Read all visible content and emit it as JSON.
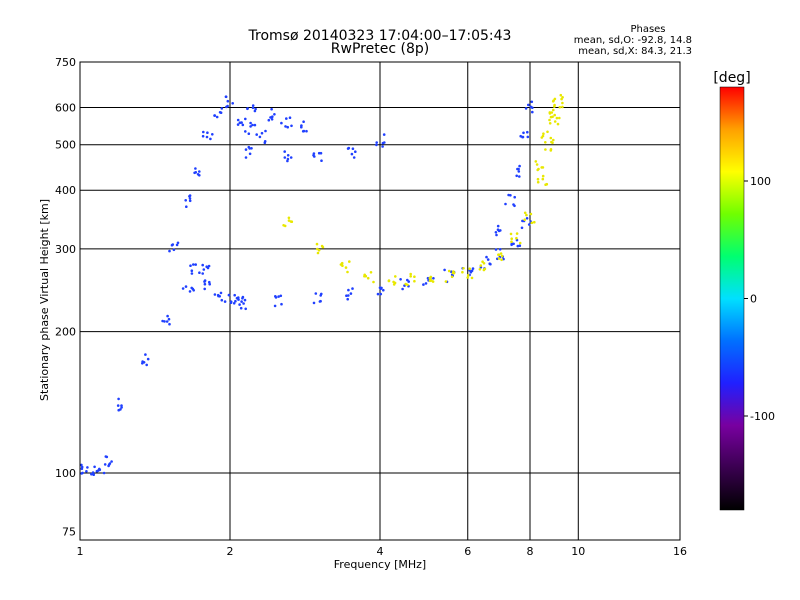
{
  "chart_data": {
    "type": "scatter",
    "title": "Tromsø 20140323 17:04:00–17:05:43",
    "subtitle": "RwPretec (8p)",
    "xlabel": "Frequency [MHz]",
    "ylabel": "Stationary phase Virtual Height [km]",
    "xscale": "log",
    "yscale": "log",
    "xlim": [
      1,
      16
    ],
    "ylim": [
      72,
      750
    ],
    "x_ticks": [
      1,
      2,
      4,
      6,
      8,
      10,
      16
    ],
    "y_ticks": [
      75,
      100,
      200,
      300,
      400,
      500,
      600,
      750
    ],
    "grid": true,
    "stats": {
      "heading": "Phases",
      "line_o": "mean, sd,O: -92.8, 14.8",
      "line_x": "mean, sd,X: 84.3, 21.3"
    },
    "colorbar": {
      "label": "[deg]",
      "range": [
        -180,
        180
      ],
      "ticks": [
        -100,
        0,
        100
      ],
      "colormap": "rainbow",
      "stops": [
        "#000000",
        "#3a0050",
        "#7800a0",
        "#2020ff",
        "#0070ff",
        "#00e0ff",
        "#00ff70",
        "#70ff00",
        "#ffff00",
        "#ffa000",
        "#ff0000"
      ]
    },
    "series": [
      {
        "phase_mean_deg": -92.8,
        "color": "#2040ff",
        "traces": [
          {
            "x": [
              1.0,
              1.05,
              1.1,
              1.13
            ],
            "y": [
              101,
              101,
              102,
              106
            ]
          },
          {
            "x": [
              1.2,
              1.35,
              1.5,
              1.65,
              1.8
            ],
            "y": [
              140,
              175,
              210,
              245,
              270
            ]
          },
          {
            "x": [
              1.55,
              1.65,
              1.72,
              1.8,
              1.9
            ],
            "y": [
              300,
              380,
              440,
              520,
              590
            ]
          },
          {
            "x": [
              1.7,
              1.8,
              1.9,
              2.0,
              2.1
            ],
            "y": [
              270,
              252,
              240,
              233,
              230
            ]
          },
          {
            "x": [
              2.1,
              2.5,
              3.0,
              3.5,
              4.0,
              4.5,
              5.0,
              5.5,
              6.0,
              6.5,
              7.0,
              7.5,
              7.9
            ],
            "y": [
              230,
              232,
              236,
              241,
              246,
              251,
              257,
              263,
              270,
              280,
              293,
              312,
              340
            ]
          },
          {
            "x": [
              7.0,
              7.3,
              7.6,
              7.8,
              7.9
            ],
            "y": [
              330,
              380,
              440,
              520,
              600
            ]
          },
          {
            "x": [
              2.0,
              2.2,
              2.4,
              2.6,
              2.8
            ],
            "y": [
              620,
              600,
              580,
              560,
              550
            ]
          },
          {
            "x": [
              2.2,
              2.6,
              3.0,
              3.5,
              4.0
            ],
            "y": [
              480,
              475,
              470,
              480,
              510
            ]
          },
          {
            "x": [
              2.1,
              2.2,
              2.3
            ],
            "y": [
              560,
              540,
              520
            ]
          }
        ]
      },
      {
        "phase_mean_deg": 84.3,
        "color": "#e8e800",
        "traces": [
          {
            "x": [
              2.6,
              3.0,
              3.4,
              3.8,
              4.2,
              4.6,
              5.0,
              5.5,
              6.0,
              6.5,
              7.0,
              7.5,
              8.0,
              8.5,
              8.8,
              9.0,
              9.1
            ],
            "y": [
              340,
              300,
              275,
              262,
              258,
              258,
              260,
              263,
              268,
              276,
              290,
              315,
              350,
              420,
              500,
              570,
              610
            ]
          },
          {
            "x": [
              8.3,
              8.6,
              8.9,
              9.1
            ],
            "y": [
              450,
              520,
              580,
              620
            ]
          }
        ]
      }
    ]
  }
}
